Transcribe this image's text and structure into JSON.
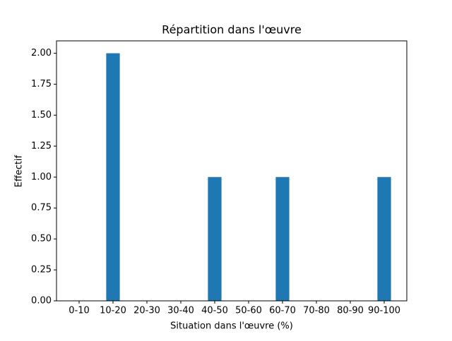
{
  "chart_data": {
    "type": "bar",
    "title": "Répartition dans l'œuvre",
    "x_label": "Situation dans l'œuvre (%)",
    "y_label": "Effectif",
    "categories": [
      "0-10",
      "10-20",
      "20-30",
      "30-40",
      "40-50",
      "50-60",
      "60-70",
      "70-80",
      "80-90",
      "90-100"
    ],
    "values": [
      0,
      2,
      0,
      0,
      1,
      0,
      1,
      0,
      0,
      1
    ],
    "color": "#1f77b4",
    "ylim": [
      0,
      2.1
    ],
    "yticks": [
      {
        "value": 0,
        "label": "0.00"
      },
      {
        "value": 0.25,
        "label": "0.25"
      },
      {
        "value": 0.5,
        "label": "0.50"
      },
      {
        "value": 0.75,
        "label": "0.75"
      },
      {
        "value": 1,
        "label": "1.00"
      },
      {
        "value": 1.25,
        "label": "1.25"
      },
      {
        "value": 1.5,
        "label": "1.50"
      },
      {
        "value": 1.75,
        "label": "1.75"
      },
      {
        "value": 2,
        "label": "2.00"
      }
    ],
    "grid": false
  }
}
